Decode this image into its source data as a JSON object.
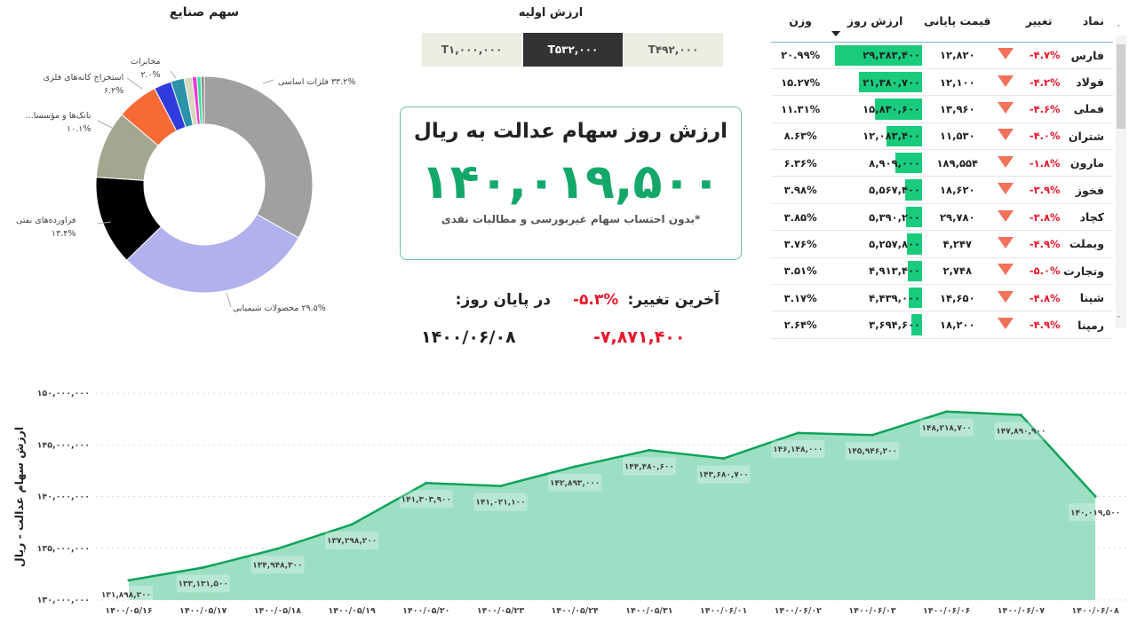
{
  "industries": {
    "title": "سهم صنایع",
    "chart_data": {
      "type": "pie",
      "donut": true,
      "slices": [
        {
          "label": "فلزات اساسی",
          "value": 33.2,
          "pct_label": "۳۳.۲%",
          "color": "#a0a0a0"
        },
        {
          "label": "محصولات شیمیایی",
          "value": 29.5,
          "pct_label": "۲۹.۵%",
          "color": "#b1b1ee"
        },
        {
          "label": "فراورده‌های نفتی",
          "value": 13.4,
          "pct_label": "۱۳.۴%",
          "color": "#000000"
        },
        {
          "label": "بانک‌ها و مؤسسا...",
          "value": 10.1,
          "pct_label": "۱۰.۱%",
          "color": "#a3a78f"
        },
        {
          "label": "استخراج کانه‌های فلزی",
          "value": 6.2,
          "pct_label": "۶.۲%",
          "color": "#f76a35"
        },
        {
          "value": 2.6,
          "color": "#2f3bdc"
        },
        {
          "label": "مخابرات",
          "value": 2.0,
          "pct_label": "۲.۰%",
          "color": "#2a93a8"
        },
        {
          "value": 1.2,
          "color": "#d6d8bf"
        },
        {
          "value": 0.7,
          "color": "#f03ad5"
        },
        {
          "value": 0.6,
          "color": "#2ee89b"
        },
        {
          "value": 0.5,
          "color": "#8a8a8a"
        }
      ]
    }
  },
  "initial_value": {
    "title": "ارزش اولیه",
    "options": [
      "T۴۹۲,۰۰۰",
      "T۵۳۲,۰۰۰",
      "T۱,۰۰۰,۰۰۰"
    ],
    "selected": "T۵۳۲,۰۰۰"
  },
  "summary": {
    "title": "ارزش روز سهام عدالت به ریال",
    "value": "۱۴۰,۰۱۹,۵۰۰",
    "note": "*بدون احتساب سهام غیربورسی و مطالبات نقدی",
    "last_change_label": "آخرین تغییر:",
    "last_change_pct": "-۵.۳%",
    "last_change_amount": "-۷,۸۷۱,۴۰۰",
    "end_of_day_label": "در پایان روز:",
    "end_of_day_date": "۱۴۰۰/۰۶/۰۸",
    "accent": "#13a86a",
    "negative": "#e8172b"
  },
  "table": {
    "headers": {
      "symbol": "نماد",
      "change": "تغییر",
      "close": "قیمت پایانی",
      "day_value": "ارزش روز",
      "weight": "وزن"
    },
    "sort_column": "day_value",
    "sort_direction": "descending",
    "rows": [
      {
        "symbol": "فارس",
        "change": "-۴.۷%",
        "close": "۱۲,۸۲۰",
        "day_value": "۲۹,۳۸۳,۴۰۰",
        "weight": "۲۰.۹۹%"
      },
      {
        "symbol": "فولاد",
        "change": "-۴.۲%",
        "close": "۱۲,۱۰۰",
        "day_value": "۲۱,۳۸۰,۷۰۰",
        "weight": "۱۵.۲۷%"
      },
      {
        "symbol": "فملی",
        "change": "-۴.۶%",
        "close": "۱۳,۹۶۰",
        "day_value": "۱۵,۸۳۰,۶۰۰",
        "weight": "۱۱.۳۱%"
      },
      {
        "symbol": "شتران",
        "change": "-۴.۰%",
        "close": "۱۱,۵۳۰",
        "day_value": "۱۲,۰۸۳,۴۰۰",
        "weight": "۸.۶۳%"
      },
      {
        "symbol": "مارون",
        "change": "-۱.۸%",
        "close": "۱۸۹,۵۵۴",
        "day_value": "۸,۹۰۹,۰۰۰",
        "weight": "۶.۳۶%"
      },
      {
        "symbol": "فخوز",
        "change": "-۳.۹%",
        "close": "۱۸,۶۲۰",
        "day_value": "۵,۵۶۷,۴۰۰",
        "weight": "۳.۹۸%"
      },
      {
        "symbol": "کچاد",
        "change": "-۳.۸%",
        "close": "۲۹,۷۸۰",
        "day_value": "۵,۳۹۰,۲۰۰",
        "weight": "۳.۸۵%"
      },
      {
        "symbol": "وبملت",
        "change": "-۴.۹%",
        "close": "۴,۲۴۷",
        "day_value": "۵,۲۵۷,۸۰۰",
        "weight": "۳.۷۶%"
      },
      {
        "symbol": "وتجارت",
        "change": "-۵.۰%",
        "close": "۲,۷۴۸",
        "day_value": "۴,۹۱۳,۴۰۰",
        "weight": "۳.۵۱%"
      },
      {
        "symbol": "شپنا",
        "change": "-۴.۸%",
        "close": "۱۴,۶۵۰",
        "day_value": "۴,۴۳۹,۰۰۰",
        "weight": "۳.۱۷%"
      },
      {
        "symbol": "رمپنا",
        "change": "-۴.۹%",
        "close": "۱۸,۲۰۰",
        "day_value": "۳,۶۹۴,۶۰۰",
        "weight": "۲.۶۴%"
      }
    ],
    "bar_color": "#19cc7c",
    "down_arrow_color": "#f2725a"
  },
  "chart_data": {
    "type": "area",
    "ylabel": "ارزش سهام عدالت - ریال",
    "xlabel": "",
    "ylim": [
      130000000,
      150000000
    ],
    "y_ticks": [
      "۱۳۰,۰۰۰,۰۰۰",
      "۱۳۵,۰۰۰,۰۰۰",
      "۱۴۰,۰۰۰,۰۰۰",
      "۱۴۵,۰۰۰,۰۰۰",
      "۱۵۰,۰۰۰,۰۰۰"
    ],
    "grid": true,
    "line_color": "#0fa35a",
    "fill_color": "#9ddfc2",
    "categories": [
      "۱۴۰۰/۰۵/۱۶",
      "۱۴۰۰/۰۵/۱۷",
      "۱۴۰۰/۰۵/۱۸",
      "۱۴۰۰/۰۵/۱۹",
      "۱۴۰۰/۰۵/۲۰",
      "۱۴۰۰/۰۵/۲۳",
      "۱۴۰۰/۰۵/۲۴",
      "۱۴۰۰/۰۵/۳۱",
      "۱۴۰۰/۰۶/۰۱",
      "۱۴۰۰/۰۶/۰۲",
      "۱۴۰۰/۰۶/۰۳",
      "۱۴۰۰/۰۶/۰۶",
      "۱۴۰۰/۰۶/۰۷",
      "۱۴۰۰/۰۶/۰۸"
    ],
    "values": [
      131898200,
      133131500,
      134948300,
      137298200,
      141303900,
      141021100,
      142893000,
      144480600,
      143680700,
      146148000,
      145946200,
      148218700,
      147890900,
      140019500
    ],
    "data_labels": [
      "۱۳۱,۸۹۸,۲۰۰",
      "۱۳۳,۱۳۱,۵۰۰",
      "۱۳۴,۹۴۸,۳۰۰",
      "۱۳۷,۲۹۸,۲۰۰",
      "۱۴۱,۳۰۳,۹۰۰",
      "۱۴۱,۰۲۱,۱۰۰",
      "۱۴۲,۸۹۳,۰۰۰",
      "۱۴۴,۴۸۰,۶۰۰",
      "۱۴۳,۶۸۰,۷۰۰",
      "۱۴۶,۱۴۸,۰۰۰",
      "۱۴۵,۹۴۶,۲۰۰",
      "۱۴۸,۲۱۸,۷۰۰",
      "۱۴۷,۸۹۰,۹۰۰",
      "۱۴۰,۰۱۹,۵۰۰"
    ]
  }
}
